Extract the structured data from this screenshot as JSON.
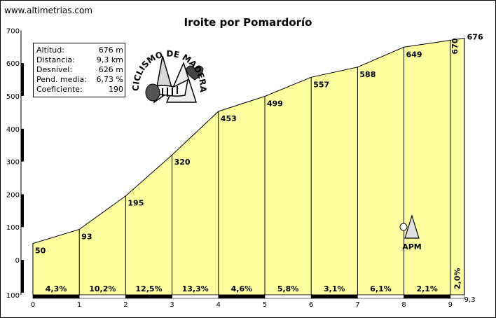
{
  "site": "www.altimetrias.com",
  "chart_data": {
    "type": "area",
    "title": "Iroite por Pomardorío",
    "x_ticks": [
      "0",
      "1",
      "2",
      "3",
      "4",
      "5",
      "6",
      "7",
      "8",
      "9",
      "9,3"
    ],
    "y_ticks": [
      "0",
      "100",
      "200",
      "300",
      "400",
      "500",
      "600",
      "700"
    ],
    "y_bottom_label": "100",
    "xlim": [
      0,
      9.3
    ],
    "ylim": [
      -100,
      700
    ],
    "points": [
      {
        "x": 0,
        "y": 50,
        "label": "50"
      },
      {
        "x": 1,
        "y": 93,
        "label": "93"
      },
      {
        "x": 2,
        "y": 195,
        "label": "195"
      },
      {
        "x": 3,
        "y": 320,
        "label": "320"
      },
      {
        "x": 4,
        "y": 453,
        "label": "453"
      },
      {
        "x": 5,
        "y": 499,
        "label": "499"
      },
      {
        "x": 6,
        "y": 557,
        "label": "557"
      },
      {
        "x": 7,
        "y": 588,
        "label": "588"
      },
      {
        "x": 8,
        "y": 649,
        "label": "649"
      },
      {
        "x": 9,
        "y": 670,
        "label": "670"
      },
      {
        "x": 9.3,
        "y": 676,
        "label": "676"
      }
    ],
    "gradients": [
      "4,3%",
      "10,2%",
      "12,5%",
      "13,3%",
      "4,6%",
      "5,8%",
      "3,1%",
      "6,1%",
      "2,1%",
      "2,0%"
    ],
    "fill_color": "#ffffa0",
    "line_color": "#000000",
    "grid": false
  },
  "stats": [
    {
      "label": "Altitud:",
      "value": "676 m"
    },
    {
      "label": "Distancia:",
      "value": "9,3 km"
    },
    {
      "label": "Desnivel:",
      "value": "626 m"
    },
    {
      "label": "Pend. media:",
      "value": "6,73 %"
    },
    {
      "label": "Coeficiente:",
      "value": "190"
    }
  ],
  "logo": {
    "text": "CICLISMO DE MADERA Y VIENTO"
  },
  "apm": {
    "text": "APM"
  }
}
